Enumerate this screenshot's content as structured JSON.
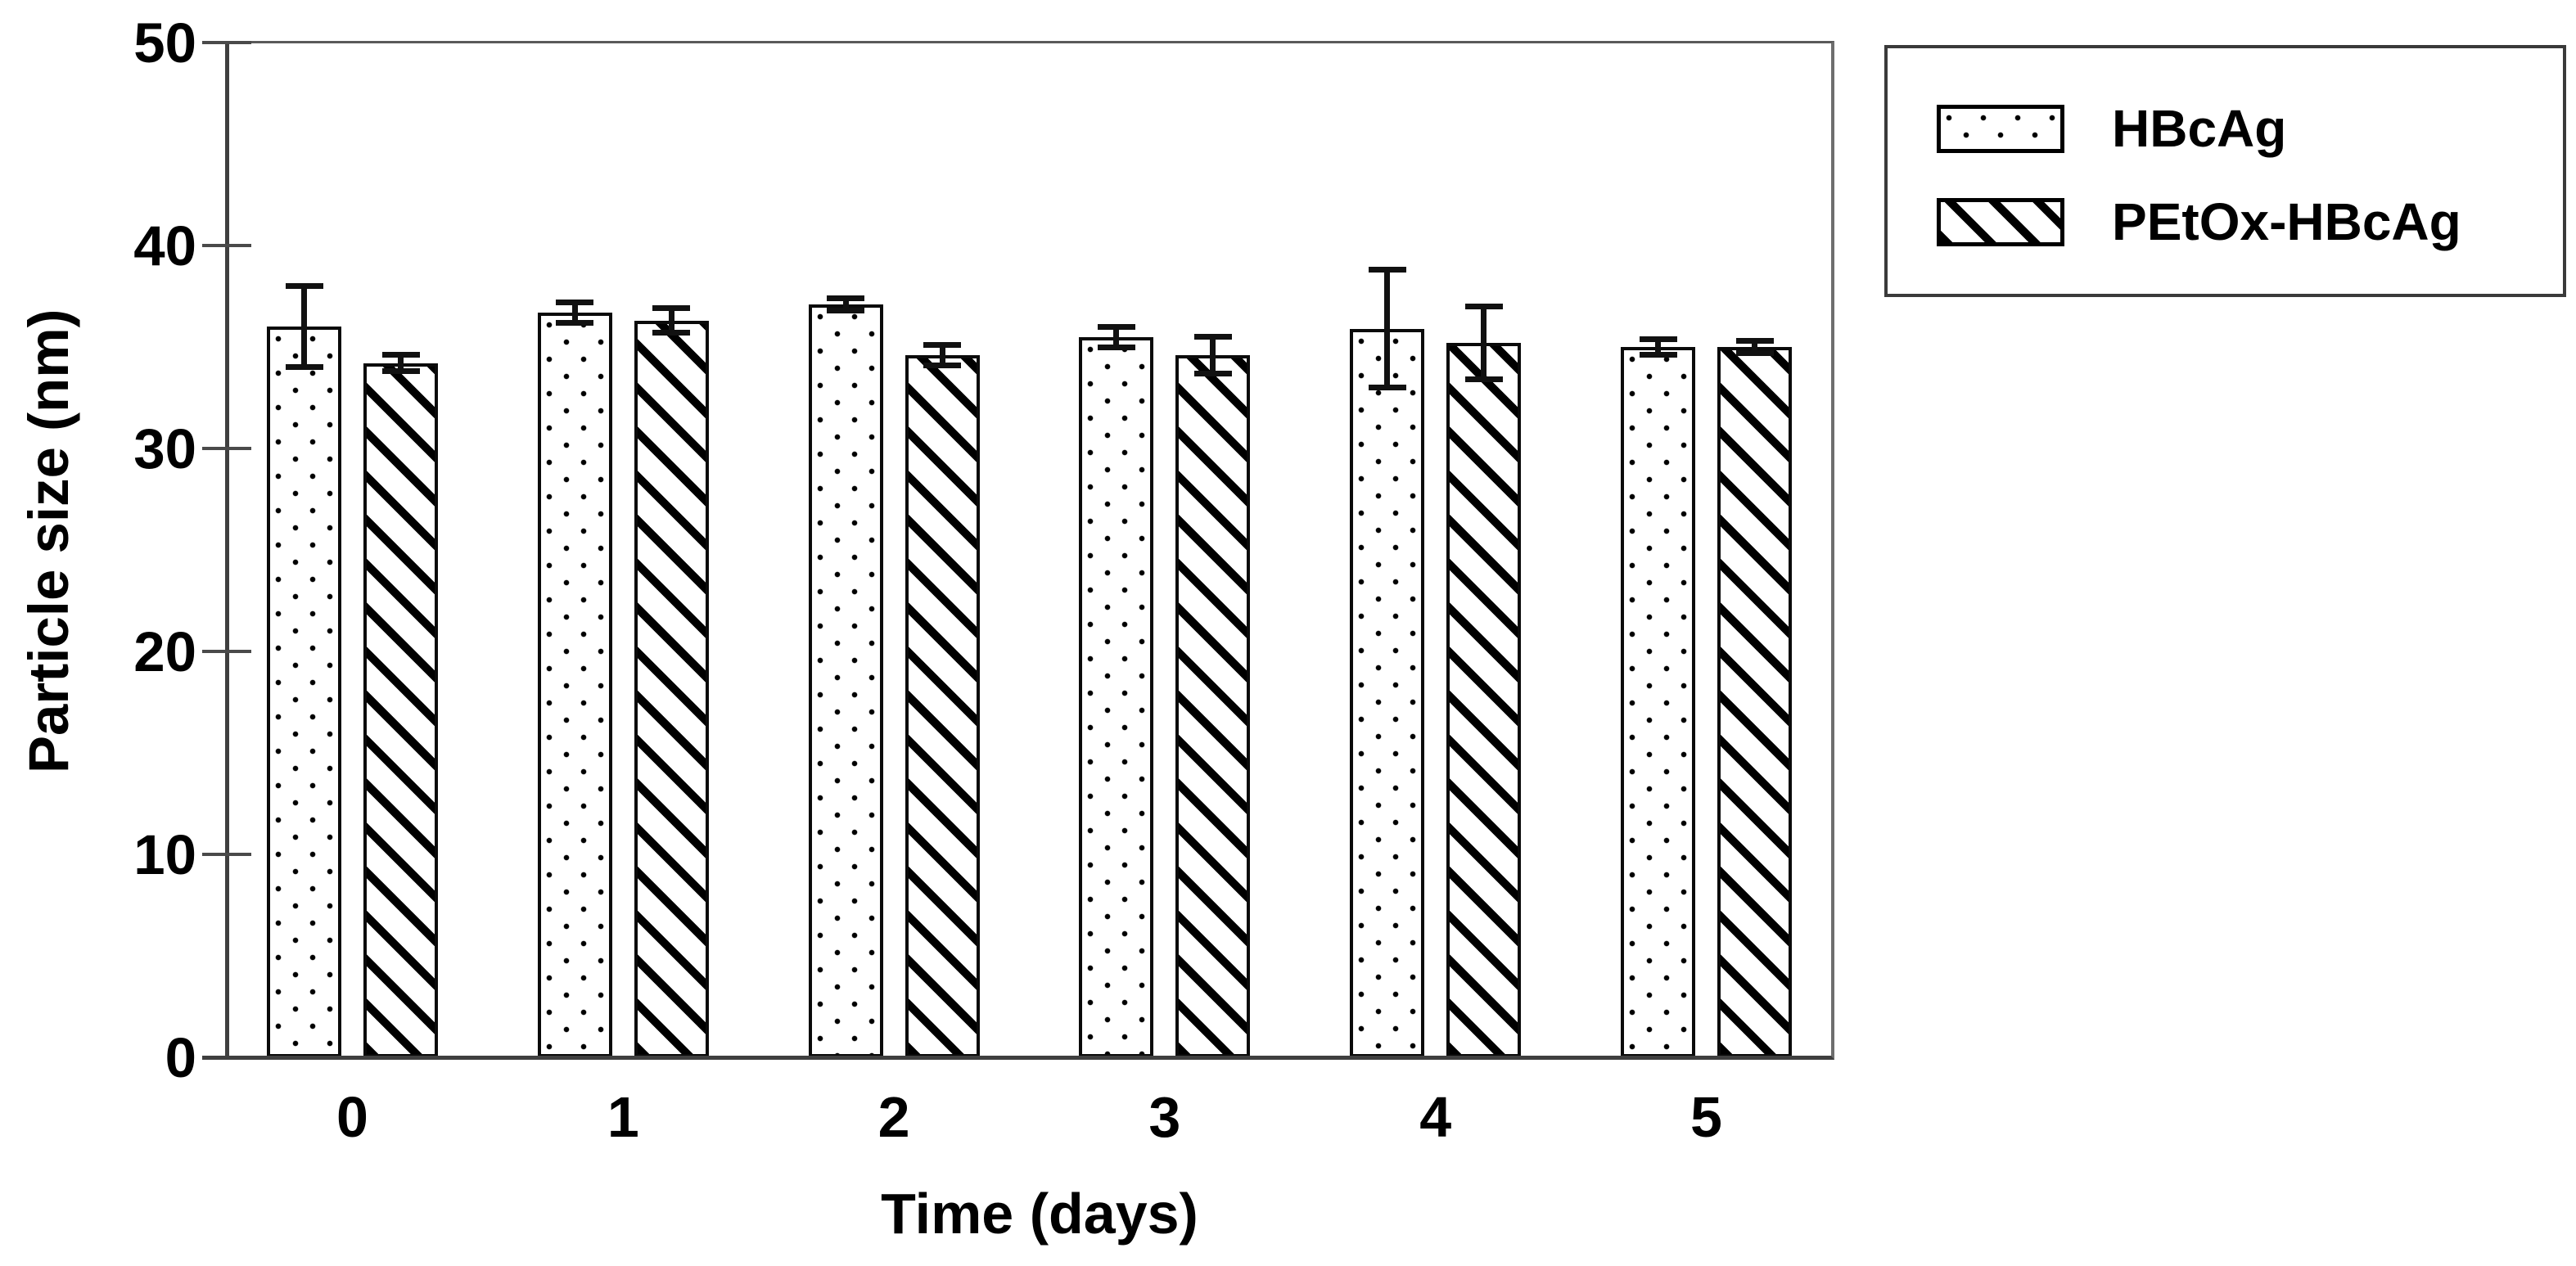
{
  "chart_data": {
    "type": "bar",
    "xlabel": "Time (days)",
    "ylabel": "Particle size (nm)",
    "categories": [
      "0",
      "1",
      "2",
      "3",
      "4",
      "5"
    ],
    "series": [
      {
        "name": "HBcAg",
        "pattern": "dots",
        "values": [
          36.0,
          36.7,
          37.1,
          35.5,
          35.9,
          35.0
        ],
        "errors": [
          2.0,
          0.5,
          0.3,
          0.5,
          2.9,
          0.4
        ]
      },
      {
        "name": "PEtOx-HBcAg",
        "pattern": "diagonal-hatch",
        "values": [
          34.2,
          36.3,
          34.6,
          34.6,
          35.2,
          35.0
        ],
        "errors": [
          0.4,
          0.6,
          0.5,
          0.9,
          1.8,
          0.3
        ]
      }
    ],
    "ylim": [
      0,
      50
    ],
    "yticks": [
      0,
      10,
      20,
      30,
      40,
      50
    ],
    "grid": false,
    "error_bars": true,
    "legend_position": "outside-top-right",
    "bar_fill": "#ffffff",
    "bar_border_color": "#000000",
    "axis_color": "#3f3f3f",
    "text_color": "#000000"
  }
}
